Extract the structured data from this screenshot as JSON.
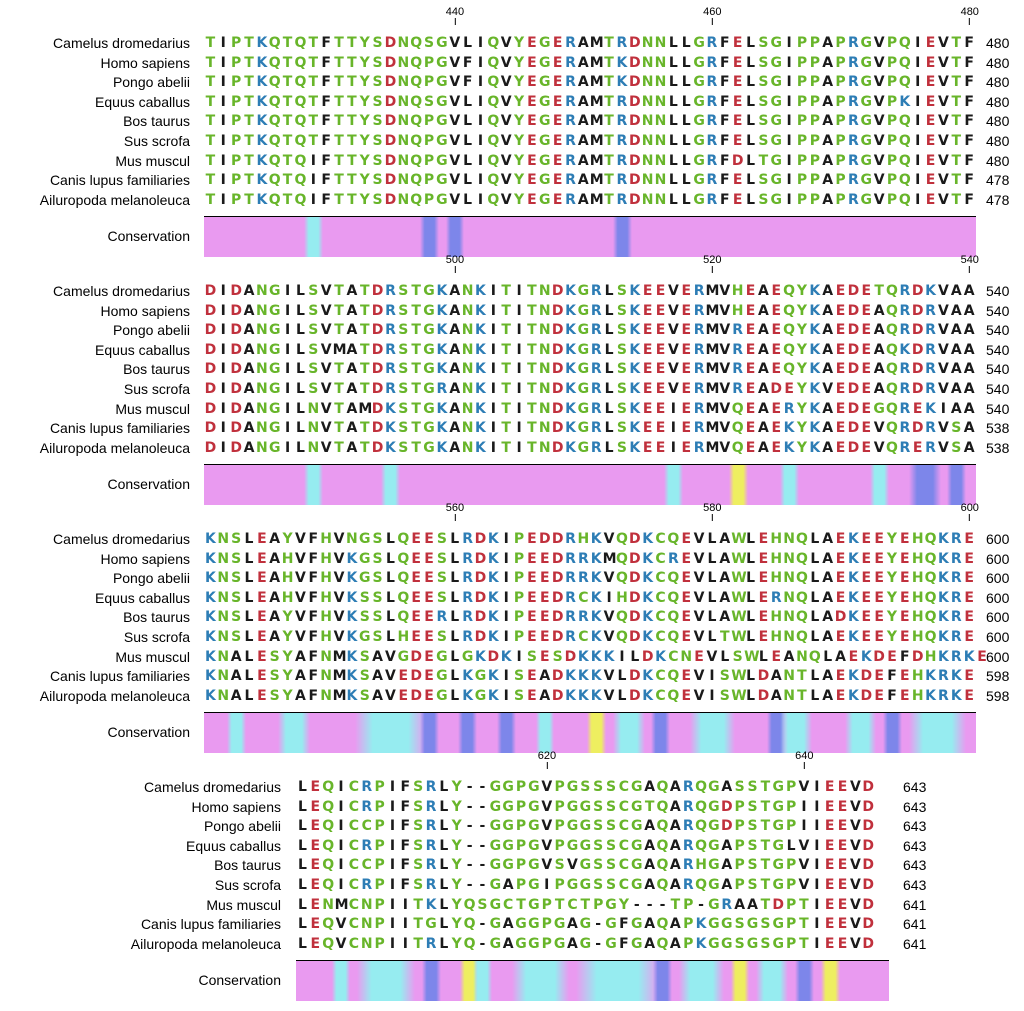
{
  "species": [
    "Camelus dromedarius",
    "Homo sapiens",
    "Pongo abelii",
    "Equus caballus",
    "Bos taurus",
    "Sus scrofa",
    "Mus muscul",
    "Canis lupus familiaries",
    "Ailuropoda melanoleuca"
  ],
  "conservation_label": "Conservation",
  "colors": {
    "green": "#68b52a",
    "blue": "#2d7db5",
    "red": "#c0303c",
    "black": "#1a1a1a",
    "pink": "#e99af0",
    "cyan": "#96ecf0",
    "cons_blue": "#7d86ea",
    "yellow": "#eeee60"
  },
  "blocks": [
    {
      "ticks": [
        "440",
        "460",
        "480"
      ],
      "rows": [
        "TIPTKQTQTFTTYSDNQSGVLIQVYEGERAMTRDNNLLGRFELSGIPPAPRGVPQIEVTF",
        "TIPTKQTQTFTTYSDNQPGVFIQVYEGERAMTKDNNLLGRFELSGIPPAPRGVPQIEVTF",
        "TIPTKQTQTFTTYSDNQPGVFIQVYEGERAMTKDNNLLGRFELSGIPPAPRGVPQIEVTF",
        "TIPTKQTQTFTTYSDNQSGVLIQVYEGERAMTRDNNLLGRFELSGIPPAPRGVPKIEVTF",
        "TIPTKQTQTFTTYSDNQPGVLIQVYEGERAMTRDNNLLGRFELSGIPPAPRGVPQIEVTF",
        "TIPTKQTQTFTTYSDNQPGVLIQVYEGERAMTRDNNLLGRFELSGIPPAPRGVPQIEVTF",
        "TIPTKQTQIFTTYSDNQPGVLIQVYEGERAMTRDNNLLGRFDLTGIPPAPRGVPQIEVTF",
        "TIPTKQTQIFTTYSDNQPGVLIQVYEGERAMTRDNNLLGRFELSGIPPAPRGVPQIEVTF",
        "TIPTKQTQIFTTYSDNQPGVLIQVYEGERAMTRDNNLLGRFELSGIPPAPRGVPQIEVTF"
      ],
      "ends": [
        "480",
        "480",
        "480",
        "480",
        "480",
        "480",
        "480",
        "478",
        "478"
      ],
      "conservation": [
        {
          "col": 8,
          "w": 1,
          "c": "cyan"
        },
        {
          "col": 17,
          "w": 1,
          "c": "cons_blue"
        },
        {
          "col": 19,
          "w": 1,
          "c": "cons_blue"
        },
        {
          "col": 32,
          "w": 1,
          "c": "cons_blue"
        }
      ]
    },
    {
      "ticks": [
        "500",
        "520",
        "540"
      ],
      "rows": [
        "DIDANGILSVTATDRSTGKANKITITNDKGRLSKEEVERMVHEAEQYKAEDETQRDKVAA",
        "DIDANGILSVTATDRSTGKANKITITNDKGRLSKEEVERMVHEAEQYKAEDEAQRDRVAA",
        "DIDANGILSVTATDRSTGKANKITITNDKGRLSKEEVERMVREAEQYKAEDEAQRDRVAA",
        "DIDANGILSVMATDRSTGKANKITITNDKGRLSKEEVERMVREAEQYKAEDEAQKDRVAA",
        "DIDANGILSVTATDRSTGKANKITITNDKGRLSKEEVERMVREAEQYKAEDEAQRDRVAA",
        "DIDANGILSVTATDRSTGRANKITITNDKGRLSKEEVERMVREADEYKVEDEAQRDRVAA",
        "DIDANGILNVTAMDKSTGKANKITITNDKGRLSKEEIERMVQEAERYKAEDEGQREKIAA",
        "DIDANGILNVTATDKSTGKANKITITNDKGRLSKEEIERMVQEAEKYKAEDEVQRDRVSA",
        "DIDANGILNVTATDKSTGKANKITITNDKGRLSKEEIERMVQEAEKYKAEDEVQRERVSA"
      ],
      "ends": [
        "540",
        "540",
        "540",
        "540",
        "540",
        "540",
        "540",
        "538",
        "538"
      ],
      "conservation": [
        {
          "col": 8,
          "w": 1,
          "c": "cyan"
        },
        {
          "col": 14,
          "w": 1,
          "c": "cyan"
        },
        {
          "col": 36,
          "w": 1,
          "c": "cyan"
        },
        {
          "col": 41,
          "w": 1,
          "c": "yellow"
        },
        {
          "col": 45,
          "w": 1,
          "c": "cyan"
        },
        {
          "col": 52,
          "w": 1,
          "c": "cyan"
        },
        {
          "col": 55,
          "w": 2,
          "c": "cons_blue"
        },
        {
          "col": 58,
          "w": 1,
          "c": "cons_blue"
        }
      ]
    },
    {
      "ticks": [
        "560",
        "580",
        "600"
      ],
      "rows": [
        "KNSLEAYVFHVNGSLQEESLRDKIPEDDRHKVQDKCQEVLAWLEHNQLAEKEEYEHQKRE",
        "KNSLEAHVFHVKGSLQEESLRDKIPEEDRRKMQDKCREVLAWLEHNQLAEKEEYEHQKRE",
        "KNSLEAHVFHVKGSLQEESLRDKIPEEDRRKVQDKCQEVLAWLEHNQLAEKEEYEHQKRE",
        "KNSLEAHVFHVKSSLQEESLRDKIPEEDRCKIHDKCQEVLAWLERNQLAEKEEYEHQKRE",
        "KNSLEAYVFHVKSSLQEERLRDKIPEEDRRKVQDKCQEVLAWLEHNQLADKEEYEHQKRE",
        "KNSLEAYVFHVKGSLHEESLRDKIPEEDRCKVQDKCQEVLTWLEHNQLAEKEEYEHQKRE",
        "KNALESYAFNMKSAVGDEGLGKDKISESDKKKILDKCNEVLSWLEANQLAEKDEFDHKRKE",
        "KNALESYAFNMKSAVEDEGLKGKISEADKKKVLDKCQEVISWLDANTLAEKDEFEHKRKE",
        "KNALESYAFNMKSAVEDEGLKGKISEADKKKVLDKCQEVISWLDANTLAEKDEFEHKRKE"
      ],
      "ends": [
        "600",
        "600",
        "600",
        "600",
        "600",
        "600",
        "600",
        "598",
        "598"
      ],
      "conservation": [
        {
          "col": 2,
          "w": 1,
          "c": "cyan"
        },
        {
          "col": 6,
          "w": 2,
          "c": "cyan"
        },
        {
          "col": 12,
          "w": 5,
          "c": "cyan"
        },
        {
          "col": 17,
          "w": 1,
          "c": "cons_blue"
        },
        {
          "col": 20,
          "w": 1,
          "c": "cons_blue"
        },
        {
          "col": 23,
          "w": 1,
          "c": "cons_blue"
        },
        {
          "col": 26,
          "w": 1,
          "c": "cyan"
        },
        {
          "col": 30,
          "w": 1,
          "c": "yellow"
        },
        {
          "col": 32,
          "w": 2,
          "c": "cyan"
        },
        {
          "col": 35,
          "w": 1,
          "c": "cons_blue"
        },
        {
          "col": 38,
          "w": 3,
          "c": "cyan"
        },
        {
          "col": 44,
          "w": 1,
          "c": "cons_blue"
        },
        {
          "col": 45,
          "w": 2,
          "c": "cyan"
        },
        {
          "col": 50,
          "w": 2,
          "c": "cyan"
        },
        {
          "col": 53,
          "w": 1,
          "c": "cons_blue"
        },
        {
          "col": 55,
          "w": 4,
          "c": "cyan"
        }
      ]
    },
    {
      "ticks": [
        "620",
        "640"
      ],
      "rows": [
        "LEQICRPIFSRLY--GGPGVPGSSSCGAQARQGASSTGPVIEEVD",
        "LEQICRPIFSRLY--GGPGVPGGSSCGTQARQGDPSTGPIIEEVD",
        "LEQICCPIFSRLY--GGPGVPGGSSCGAQARQGDPSTGPIIEEVD",
        "LEQICRPIFSRLY--GGPGVPGGSSCGAQARQGAPSTGLVIEEVD",
        "LEQICCPIFSRLY--GGPGVSVGSSCGAQARHGAPSTGPVIEEVD",
        "LEQICRPIFSRLY--GAPGIPGGSSCGAQARQGAPSTGPVIEEVD",
        "LENMCNPIITKLYQSGCTGPTCTPGY---TP-GRAATDPTIEEVD",
        "LEQVCNPIITGLYQ-GAGGPGAG-GFGAQAPKGGSGSGPTIEEVD",
        "LEQVCNPIITRLYQ-GAGGPGAG-GFGAQAPKGGSGSGPTIEEVD"
      ],
      "ends": [
        "643",
        "643",
        "643",
        "643",
        "643",
        "643",
        "641",
        "641",
        "641"
      ],
      "conservation": [
        {
          "col": 3,
          "w": 1,
          "c": "cyan"
        },
        {
          "col": 5,
          "w": 4,
          "c": "cyan"
        },
        {
          "col": 10,
          "w": 1,
          "c": "cons_blue"
        },
        {
          "col": 13,
          "w": 1,
          "c": "yellow"
        },
        {
          "col": 14,
          "w": 1,
          "c": "cyan"
        },
        {
          "col": 17,
          "w": 4,
          "c": "cyan"
        },
        {
          "col": 22,
          "w": 6,
          "c": "cyan"
        },
        {
          "col": 28,
          "w": 1,
          "c": "cons_blue"
        },
        {
          "col": 30,
          "w": 3,
          "c": "cyan"
        },
        {
          "col": 34,
          "w": 1,
          "c": "yellow"
        },
        {
          "col": 36,
          "w": 2,
          "c": "cyan"
        },
        {
          "col": 39,
          "w": 1,
          "c": "cons_blue"
        },
        {
          "col": 41,
          "w": 1,
          "c": "yellow"
        }
      ]
    }
  ]
}
